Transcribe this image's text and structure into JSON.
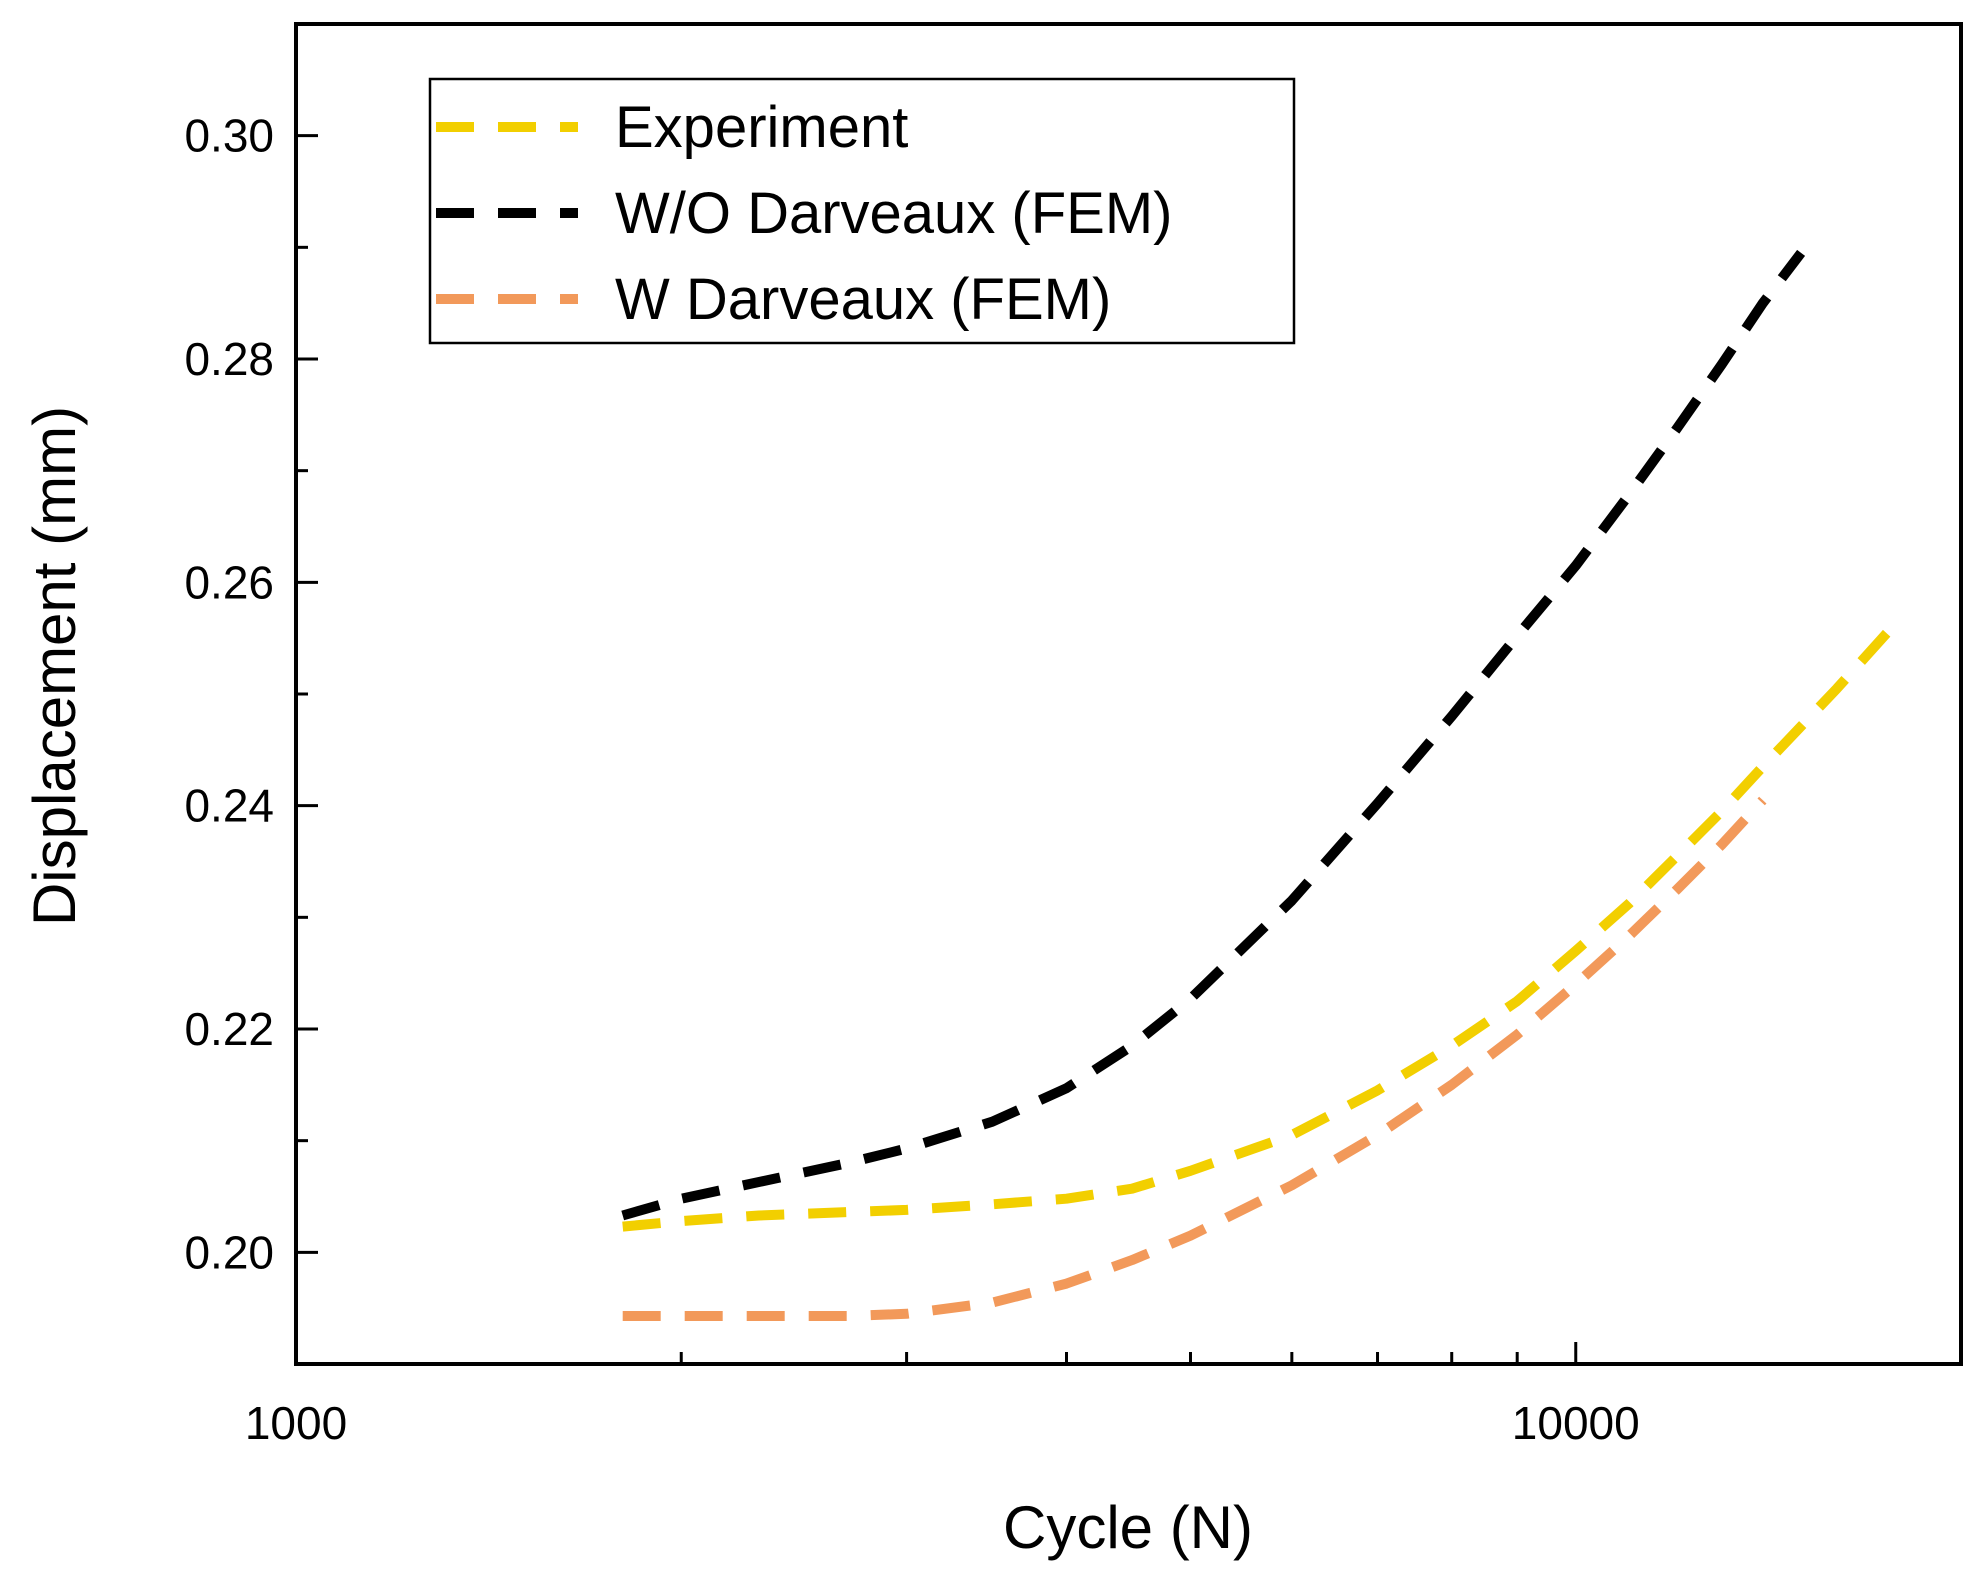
{
  "chart_data": {
    "type": "line",
    "title": "",
    "xlabel": "Cycle (N)",
    "ylabel": "Displacement (mm)",
    "x_scale": "log",
    "xlim": [
      1000,
      20000
    ],
    "ylim": [
      0.19,
      0.31
    ],
    "x_major_ticks": [
      {
        "value": 1000,
        "label": "1000"
      },
      {
        "value": 10000,
        "label": "10000"
      }
    ],
    "x_minor_ticks": [
      2000,
      3000,
      4000,
      5000,
      6000,
      7000,
      8000,
      9000
    ],
    "y_major_ticks": [
      {
        "value": 0.2,
        "label": "0.20"
      },
      {
        "value": 0.22,
        "label": "0.22"
      },
      {
        "value": 0.24,
        "label": "0.24"
      },
      {
        "value": 0.26,
        "label": "0.26"
      },
      {
        "value": 0.28,
        "label": "0.28"
      },
      {
        "value": 0.3,
        "label": "0.30"
      }
    ],
    "y_minor_ticks": [
      0.21,
      0.23,
      0.25,
      0.27,
      0.29
    ],
    "grid": false,
    "legend_position": "top-left",
    "series": [
      {
        "name": "Experiment",
        "color": "#F2CF00",
        "x": [
          1800,
          2000,
          2300,
          2700,
          3000,
          3500,
          4000,
          4500,
          5000,
          6000,
          7000,
          8000,
          9000,
          10000,
          11000,
          12000,
          13000,
          14000,
          16000,
          18000
        ],
        "y": [
          0.2023,
          0.2028,
          0.2033,
          0.2036,
          0.2038,
          0.2043,
          0.2048,
          0.2057,
          0.2073,
          0.2105,
          0.2145,
          0.2185,
          0.2225,
          0.227,
          0.2312,
          0.2355,
          0.2395,
          0.2435,
          0.2505,
          0.257
        ]
      },
      {
        "name": "W/O Darveaux (FEM)",
        "color": "#000000",
        "x": [
          1800,
          2000,
          2300,
          2700,
          3000,
          3500,
          4000,
          4500,
          5000,
          6000,
          7000,
          8000,
          9000,
          10000,
          11000,
          12000,
          13000,
          14000,
          15000
        ],
        "y": [
          0.2033,
          0.2048,
          0.2063,
          0.208,
          0.2093,
          0.2117,
          0.2147,
          0.2185,
          0.2227,
          0.2315,
          0.2402,
          0.248,
          0.2552,
          0.2615,
          0.2678,
          0.2738,
          0.2795,
          0.285,
          0.2895
        ]
      },
      {
        "name": "W Darveaux (FEM)",
        "color": "#F2995A",
        "x": [
          1800,
          2000,
          2300,
          2700,
          3000,
          3500,
          4000,
          4500,
          5000,
          6000,
          7000,
          8000,
          9000,
          10000,
          11000,
          12000,
          13000,
          14000
        ],
        "y": [
          0.1943,
          0.1943,
          0.1943,
          0.1943,
          0.1945,
          0.1955,
          0.1972,
          0.1993,
          0.2015,
          0.206,
          0.2105,
          0.215,
          0.2195,
          0.224,
          0.2283,
          0.2325,
          0.2365,
          0.2405
        ]
      }
    ]
  }
}
